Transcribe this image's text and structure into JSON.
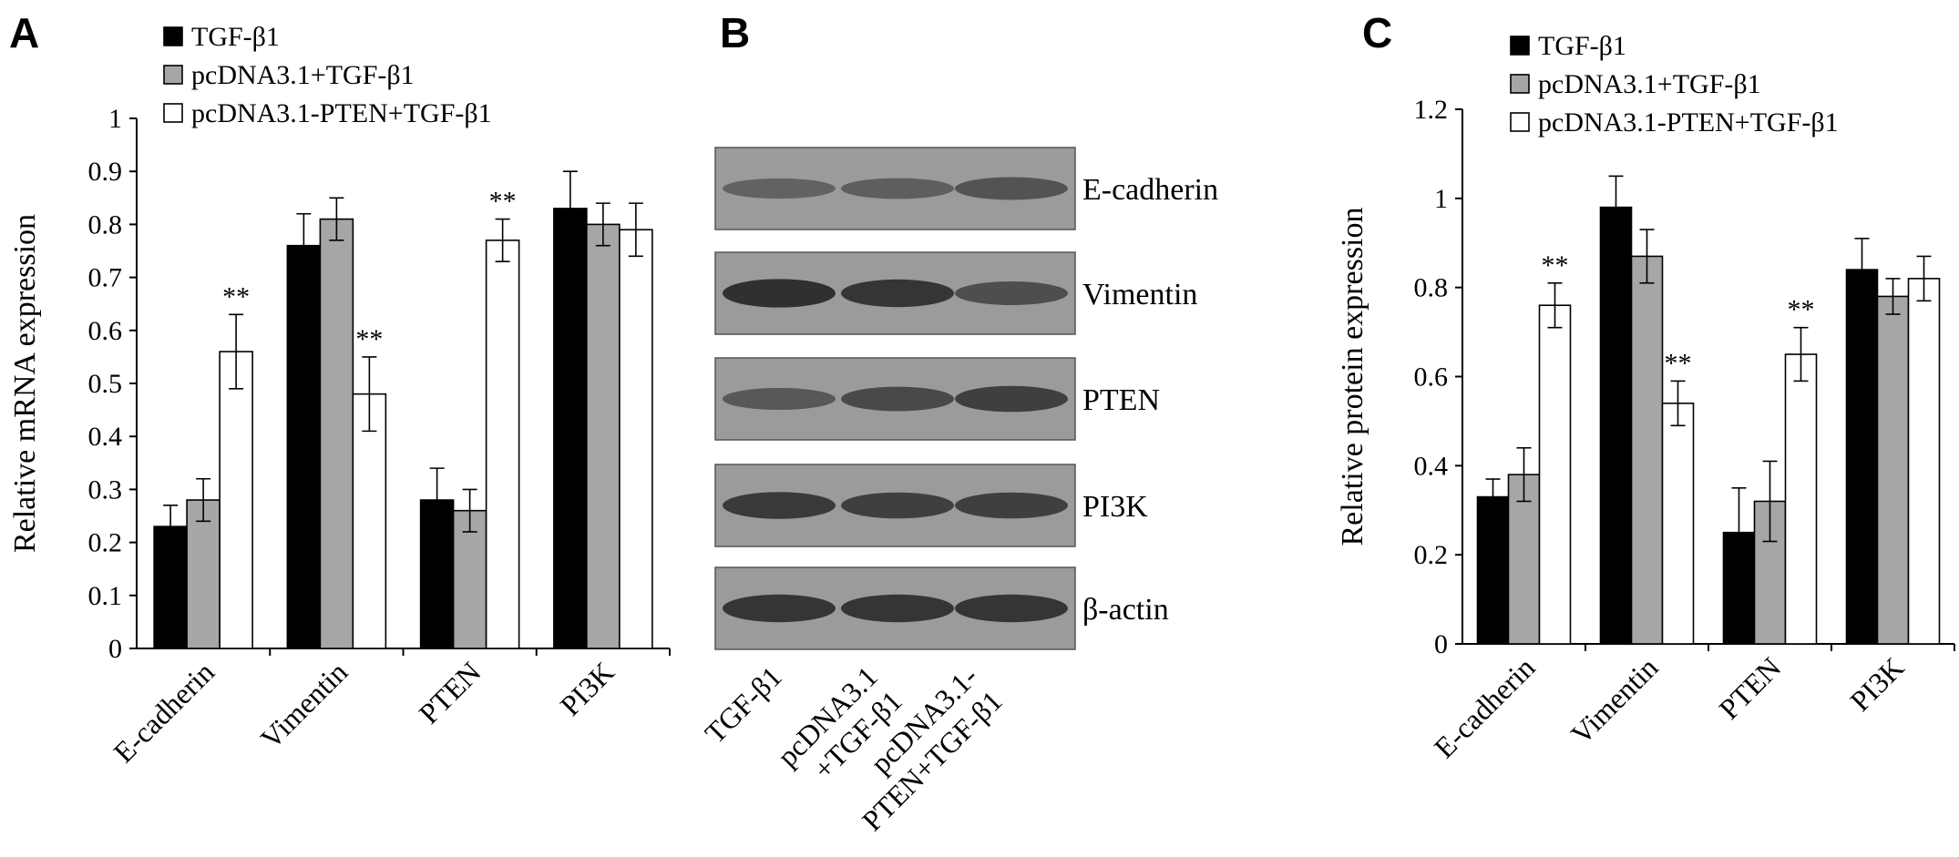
{
  "panels": {
    "a_label": "A",
    "b_label": "B",
    "c_label": "C"
  },
  "colors": {
    "TGF-β1": "#000000",
    "pcDNA3.1+TGF-β1": "#a6a6a6",
    "pcDNA3.1-PTEN+TGF-β1": "#ffffff"
  },
  "chart_data": [
    {
      "type": "bar",
      "panel": "A",
      "ylabel": "Relative mRNA expression",
      "ylim": [
        0,
        1
      ],
      "ytick_labels": [
        "0",
        "0.1",
        "0.2",
        "0.3",
        "0.4",
        "0.5",
        "0.6",
        "0.7",
        "0.8",
        "0.9",
        "1"
      ],
      "categories": [
        "E-cadherin",
        "Vimentin",
        "PTEN",
        "PI3K"
      ],
      "series": [
        {
          "name": "TGF-β1",
          "values": [
            0.23,
            0.76,
            0.28,
            0.83
          ],
          "errors": [
            0.04,
            0.06,
            0.06,
            0.07
          ]
        },
        {
          "name": "pcDNA3.1+TGF-β1",
          "values": [
            0.28,
            0.81,
            0.26,
            0.8
          ],
          "errors": [
            0.04,
            0.04,
            0.04,
            0.04
          ]
        },
        {
          "name": "pcDNA3.1-PTEN+TGF-β1",
          "values": [
            0.56,
            0.48,
            0.77,
            0.79
          ],
          "errors": [
            0.07,
            0.07,
            0.04,
            0.05
          ]
        }
      ],
      "annotations": [
        "**",
        "**",
        "**",
        ""
      ],
      "legend": "top-left"
    },
    {
      "type": "bar",
      "panel": "C",
      "ylabel": "Relative protein expression",
      "ylim": [
        0,
        1.2
      ],
      "ytick_labels": [
        "0",
        "0.2",
        "0.4",
        "0.6",
        "0.8",
        "1",
        "1.2"
      ],
      "categories": [
        "E-cadherin",
        "Vimentin",
        "PTEN",
        "PI3K"
      ],
      "series": [
        {
          "name": "TGF-β1",
          "values": [
            0.33,
            0.98,
            0.25,
            0.84
          ],
          "errors": [
            0.04,
            0.07,
            0.1,
            0.07
          ]
        },
        {
          "name": "pcDNA3.1+TGF-β1",
          "values": [
            0.38,
            0.87,
            0.32,
            0.78
          ],
          "errors": [
            0.06,
            0.06,
            0.09,
            0.04
          ]
        },
        {
          "name": "pcDNA3.1-PTEN+TGF-β1",
          "values": [
            0.76,
            0.54,
            0.65,
            0.82
          ],
          "errors": [
            0.05,
            0.05,
            0.06,
            0.05
          ]
        }
      ],
      "annotations": [
        "**",
        "**",
        "**",
        ""
      ],
      "legend": "top-left"
    }
  ],
  "blot": {
    "bands": [
      "E-cadherin",
      "Vimentin",
      "PTEN",
      "PI3K",
      "β-actin"
    ],
    "lanes": [
      "TGF-β1",
      "pcDNA3.1\n+TGF-β1",
      "pcDNA3.1-\nPTEN+TGF-β1"
    ],
    "intensity": [
      [
        0.35,
        0.38,
        0.5
      ],
      [
        0.85,
        0.8,
        0.55
      ],
      [
        0.45,
        0.6,
        0.7
      ],
      [
        0.75,
        0.7,
        0.7
      ],
      [
        0.8,
        0.8,
        0.8
      ]
    ]
  }
}
